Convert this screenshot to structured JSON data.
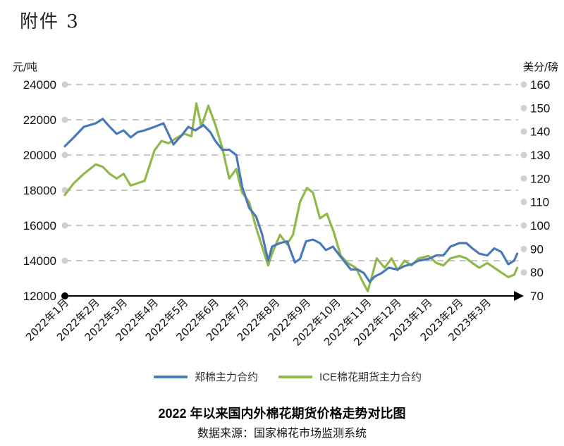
{
  "attachment_label": "附件 3",
  "caption": {
    "title": "2022 年以来国内外棉花期货价格走势对比图",
    "source": "数据来源：国家棉花市场监测系统"
  },
  "colors": {
    "series_1": "#4a79b9",
    "series_2": "#91b84b",
    "grid": "#c8c8c8",
    "axis": "#000000"
  },
  "chart_data": {
    "type": "line",
    "x_tick_labels": [
      "2022年1月",
      "2022年2月",
      "2022年3月",
      "2022年4月",
      "2022年5月",
      "2022年6月",
      "2022年7月",
      "2022年8月",
      "2022年9月",
      "2022年10月",
      "2022年11月",
      "2022年12月",
      "2023年1月",
      "2023年2月",
      "2023年3月"
    ],
    "y_left": {
      "unit": "元/吨",
      "min": 12000,
      "max": 24000,
      "ticks": [
        12000,
        14000,
        16000,
        18000,
        20000,
        22000,
        24000
      ]
    },
    "y_right": {
      "unit": "美分/磅",
      "min": 70,
      "max": 160,
      "ticks": [
        70,
        80,
        90,
        100,
        110,
        120,
        130,
        140,
        150,
        160
      ]
    },
    "grid": true,
    "legend_position": "bottom",
    "series": [
      {
        "name": "郑棉主力合约",
        "axis": "left",
        "points": [
          [
            "2022-01-01",
            20500
          ],
          [
            "2022-01-10",
            21000
          ],
          [
            "2022-01-20",
            21600
          ],
          [
            "2022-02-01",
            21800
          ],
          [
            "2022-02-08",
            22050
          ],
          [
            "2022-02-15",
            21600
          ],
          [
            "2022-02-22",
            21200
          ],
          [
            "2022-03-01",
            21400
          ],
          [
            "2022-03-08",
            21000
          ],
          [
            "2022-03-15",
            21300
          ],
          [
            "2022-03-22",
            21400
          ],
          [
            "2022-04-01",
            21600
          ],
          [
            "2022-04-10",
            21800
          ],
          [
            "2022-04-20",
            20600
          ],
          [
            "2022-04-28",
            21100
          ],
          [
            "2022-05-05",
            21600
          ],
          [
            "2022-05-12",
            21400
          ],
          [
            "2022-05-20",
            21700
          ],
          [
            "2022-05-27",
            21300
          ],
          [
            "2022-06-01",
            20800
          ],
          [
            "2022-06-08",
            20300
          ],
          [
            "2022-06-15",
            20300
          ],
          [
            "2022-06-22",
            20000
          ],
          [
            "2022-06-28",
            18200
          ],
          [
            "2022-07-05",
            17000
          ],
          [
            "2022-07-12",
            16500
          ],
          [
            "2022-07-18",
            15500
          ],
          [
            "2022-07-24",
            14000
          ],
          [
            "2022-07-28",
            14800
          ],
          [
            "2022-08-05",
            15000
          ],
          [
            "2022-08-12",
            15100
          ],
          [
            "2022-08-20",
            13900
          ],
          [
            "2022-08-25",
            14100
          ],
          [
            "2022-08-31",
            15100
          ],
          [
            "2022-09-07",
            15200
          ],
          [
            "2022-09-14",
            15000
          ],
          [
            "2022-09-20",
            14600
          ],
          [
            "2022-09-27",
            14800
          ],
          [
            "2022-10-01",
            14500
          ],
          [
            "2022-10-08",
            14000
          ],
          [
            "2022-10-15",
            13500
          ],
          [
            "2022-10-22",
            13500
          ],
          [
            "2022-10-28",
            13300
          ],
          [
            "2022-11-03",
            12800
          ],
          [
            "2022-11-08",
            13100
          ],
          [
            "2022-11-15",
            13300
          ],
          [
            "2022-11-22",
            13600
          ],
          [
            "2022-12-01",
            13500
          ],
          [
            "2022-12-08",
            13700
          ],
          [
            "2022-12-15",
            13800
          ],
          [
            "2022-12-22",
            14000
          ],
          [
            "2023-01-01",
            14100
          ],
          [
            "2023-01-09",
            14300
          ],
          [
            "2023-01-16",
            14300
          ],
          [
            "2023-01-23",
            14800
          ],
          [
            "2023-02-01",
            15000
          ],
          [
            "2023-02-08",
            15000
          ],
          [
            "2023-02-14",
            14700
          ],
          [
            "2023-02-21",
            14400
          ],
          [
            "2023-03-01",
            14300
          ],
          [
            "2023-03-08",
            14700
          ],
          [
            "2023-03-15",
            14500
          ],
          [
            "2023-03-22",
            13800
          ],
          [
            "2023-03-28",
            14000
          ],
          [
            "2023-03-31",
            14400
          ]
        ]
      },
      {
        "name": "ICE棉花期货主力合约",
        "axis": "right",
        "points": [
          [
            "2022-01-01",
            113
          ],
          [
            "2022-01-10",
            118
          ],
          [
            "2022-01-20",
            122
          ],
          [
            "2022-02-01",
            126
          ],
          [
            "2022-02-08",
            125
          ],
          [
            "2022-02-15",
            122
          ],
          [
            "2022-02-22",
            120
          ],
          [
            "2022-03-01",
            122
          ],
          [
            "2022-03-08",
            117
          ],
          [
            "2022-03-15",
            118
          ],
          [
            "2022-03-22",
            119
          ],
          [
            "2022-04-01",
            132
          ],
          [
            "2022-04-08",
            136
          ],
          [
            "2022-04-15",
            135
          ],
          [
            "2022-04-22",
            137
          ],
          [
            "2022-05-01",
            139
          ],
          [
            "2022-05-08",
            138
          ],
          [
            "2022-05-13",
            152
          ],
          [
            "2022-05-18",
            142
          ],
          [
            "2022-05-25",
            151
          ],
          [
            "2022-06-01",
            143
          ],
          [
            "2022-06-08",
            133
          ],
          [
            "2022-06-15",
            120
          ],
          [
            "2022-06-22",
            124
          ],
          [
            "2022-06-28",
            114
          ],
          [
            "2022-07-05",
            110
          ],
          [
            "2022-07-12",
            99
          ],
          [
            "2022-07-18",
            91
          ],
          [
            "2022-07-24",
            83
          ],
          [
            "2022-07-28",
            88
          ],
          [
            "2022-08-05",
            96
          ],
          [
            "2022-08-12",
            92
          ],
          [
            "2022-08-18",
            96
          ],
          [
            "2022-08-25",
            110
          ],
          [
            "2022-09-01",
            116
          ],
          [
            "2022-09-07",
            114
          ],
          [
            "2022-09-14",
            103
          ],
          [
            "2022-09-21",
            105
          ],
          [
            "2022-09-28",
            97
          ],
          [
            "2022-10-05",
            87
          ],
          [
            "2022-10-12",
            84
          ],
          [
            "2022-10-20",
            82
          ],
          [
            "2022-10-27",
            76
          ],
          [
            "2022-11-01",
            72
          ],
          [
            "2022-11-05",
            78
          ],
          [
            "2022-11-10",
            86
          ],
          [
            "2022-11-18",
            82
          ],
          [
            "2022-11-25",
            86
          ],
          [
            "2022-12-01",
            81
          ],
          [
            "2022-12-08",
            85
          ],
          [
            "2022-12-15",
            83
          ],
          [
            "2022-12-22",
            86
          ],
          [
            "2023-01-01",
            87
          ],
          [
            "2023-01-09",
            84
          ],
          [
            "2023-01-16",
            83
          ],
          [
            "2023-01-23",
            86
          ],
          [
            "2023-02-01",
            87
          ],
          [
            "2023-02-08",
            86
          ],
          [
            "2023-02-14",
            84
          ],
          [
            "2023-02-21",
            82
          ],
          [
            "2023-03-01",
            84
          ],
          [
            "2023-03-08",
            82
          ],
          [
            "2023-03-15",
            80
          ],
          [
            "2023-03-22",
            78
          ],
          [
            "2023-03-28",
            79
          ],
          [
            "2023-03-31",
            82
          ]
        ]
      }
    ]
  }
}
